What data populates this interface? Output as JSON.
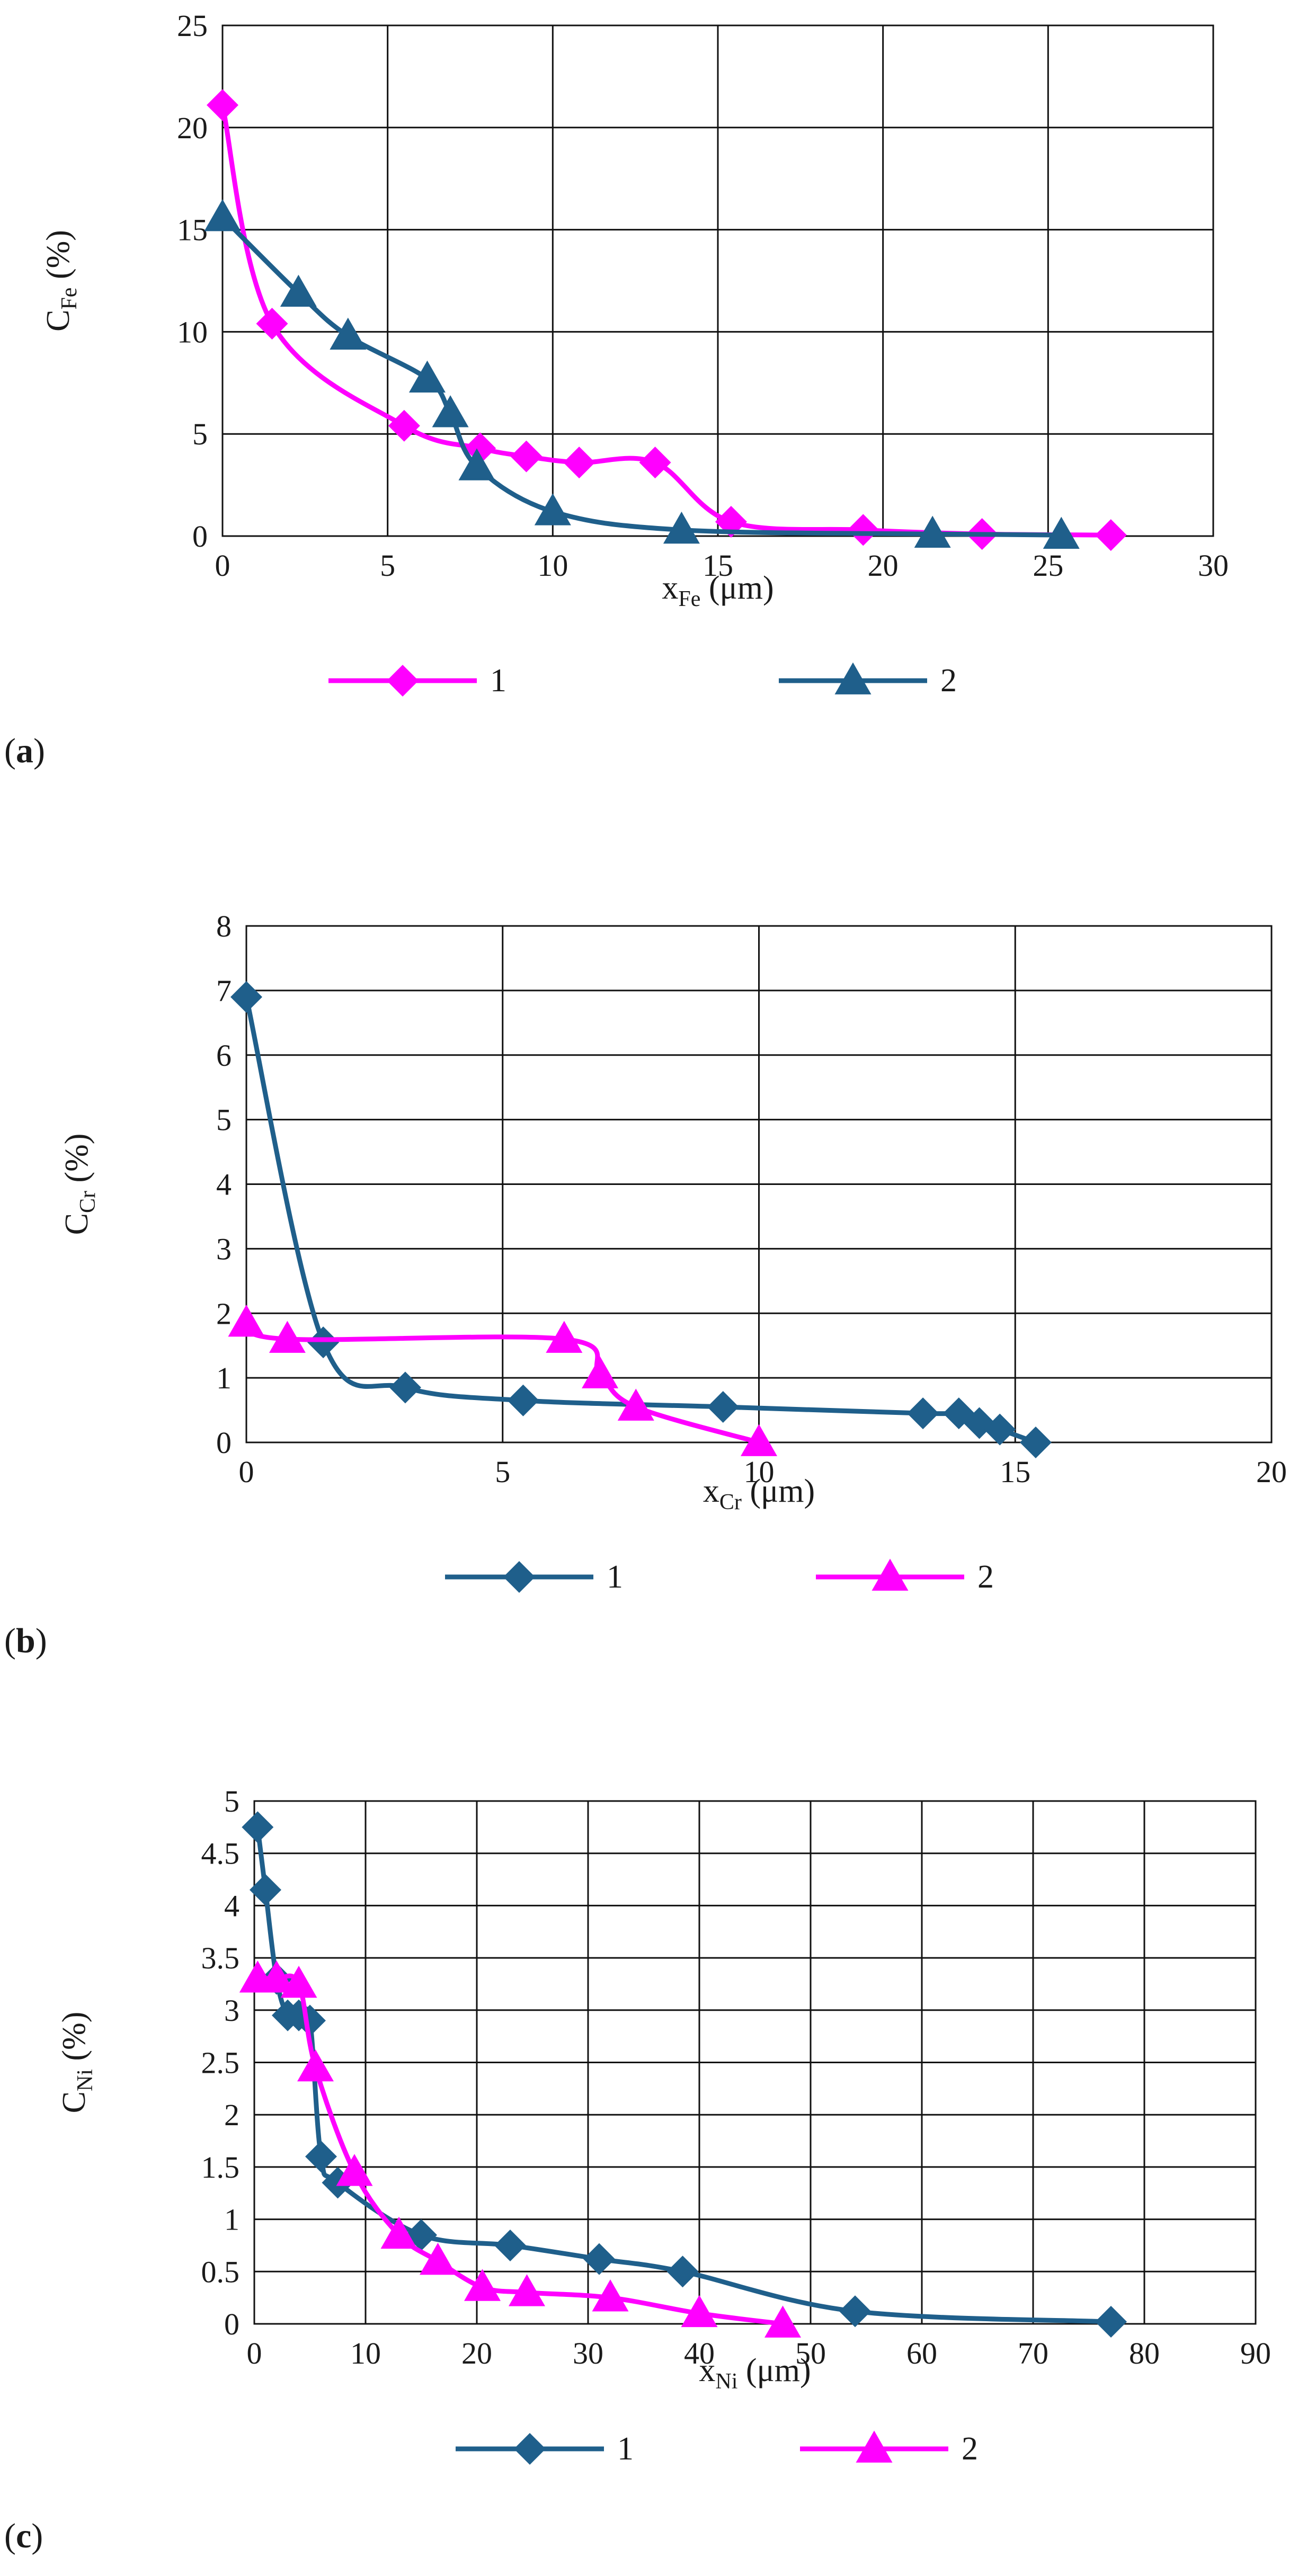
{
  "chart_data": [
    {
      "id": "a",
      "type": "line",
      "panel_label": "a",
      "xlabel_main": "x",
      "xlabel_sub": "Fe",
      "xlabel_unit": " (μm)",
      "ylabel_main": "C",
      "ylabel_sub": "Fe",
      "ylabel_unit": " (%)",
      "xlim": [
        0,
        30
      ],
      "ylim": [
        0,
        25
      ],
      "xticks": [
        0,
        5,
        10,
        15,
        20,
        25,
        30
      ],
      "yticks": [
        0,
        5,
        10,
        15,
        20,
        25
      ],
      "ytick_labels": [
        "0",
        "5",
        "10",
        "15",
        "20",
        "25"
      ],
      "xtick_labels": [
        "0",
        "5",
        "10",
        "15",
        "20",
        "25",
        "30"
      ],
      "grid": true,
      "legend_position": "bottom",
      "series": [
        {
          "name": "1",
          "color": "#ff00ff",
          "marker": "diamond",
          "x": [
            0,
            1.5,
            5.5,
            7.8,
            9.2,
            10.8,
            13.1,
            15.4,
            19.4,
            23.0,
            26.9
          ],
          "y": [
            21.1,
            10.4,
            5.4,
            4.3,
            3.9,
            3.6,
            3.6,
            0.7,
            0.3,
            0.1,
            0.05
          ]
        },
        {
          "name": "2",
          "color": "#1f5f8b",
          "marker": "triangle",
          "x": [
            0,
            2.3,
            3.8,
            6.2,
            6.9,
            7.7,
            10.0,
            13.9,
            21.5,
            25.4
          ],
          "y": [
            15.6,
            11.9,
            9.8,
            7.7,
            6.0,
            3.4,
            1.2,
            0.3,
            0.1,
            0.05
          ]
        }
      ]
    },
    {
      "id": "b",
      "type": "line",
      "panel_label": "b",
      "xlabel_main": "x",
      "xlabel_sub": "Cr",
      "xlabel_unit": " (μm)",
      "ylabel_main": "C",
      "ylabel_sub": "Cr",
      "ylabel_unit": "  (%)",
      "xlim": [
        0,
        20
      ],
      "ylim": [
        0,
        8
      ],
      "xticks": [
        0,
        5,
        10,
        15,
        20
      ],
      "yticks": [
        0,
        1,
        2,
        3,
        4,
        5,
        6,
        7,
        8
      ],
      "ytick_labels": [
        "0",
        "1",
        "2",
        "3",
        "4",
        "5",
        "6",
        "7",
        "8"
      ],
      "xtick_labels": [
        "0",
        "5",
        "10",
        "15",
        "20"
      ],
      "grid": true,
      "legend_position": "bottom",
      "series": [
        {
          "name": "1",
          "color": "#1f5f8b",
          "marker": "diamond",
          "x": [
            0,
            1.5,
            3.1,
            5.4,
            9.3,
            13.2,
            13.9,
            14.3,
            14.7,
            15.4
          ],
          "y": [
            6.9,
            1.55,
            0.85,
            0.65,
            0.55,
            0.45,
            0.45,
            0.3,
            0.2,
            0.0
          ]
        },
        {
          "name": "2",
          "color": "#ff00ff",
          "marker": "triangle",
          "x": [
            0,
            0.8,
            6.2,
            6.9,
            7.6,
            10.0
          ],
          "y": [
            1.85,
            1.6,
            1.6,
            1.05,
            0.55,
            0.0
          ]
        }
      ]
    },
    {
      "id": "c",
      "type": "line",
      "panel_label": "c",
      "xlabel_main": "x",
      "xlabel_sub": "Ni",
      "xlabel_unit": " (μm)",
      "ylabel_main": "C",
      "ylabel_sub": "Ni",
      "ylabel_unit": "  (%)",
      "xlim": [
        0,
        90
      ],
      "ylim": [
        0,
        5
      ],
      "xticks": [
        0,
        10,
        20,
        30,
        40,
        50,
        60,
        70,
        80,
        90
      ],
      "yticks": [
        0,
        0.5,
        1,
        1.5,
        2,
        2.5,
        3,
        3.5,
        4,
        4.5,
        5
      ],
      "ytick_labels": [
        "0",
        "0.5",
        "1",
        "1.5",
        "2",
        "2.5",
        "3",
        "3.5",
        "4",
        "4.5",
        "5"
      ],
      "xtick_labels": [
        "0",
        "10",
        "20",
        "30",
        "40",
        "50",
        "60",
        "70",
        "80",
        "90"
      ],
      "grid": true,
      "legend_position": "bottom",
      "series": [
        {
          "name": "1",
          "color": "#1f5f8b",
          "marker": "diamond",
          "x": [
            0.3,
            1.0,
            2.0,
            3.0,
            4.0,
            5.0,
            6.0,
            7.5,
            15.0,
            23.0,
            31.0,
            38.5,
            54.0,
            77.0
          ],
          "y": [
            4.75,
            4.15,
            3.3,
            2.95,
            2.95,
            2.9,
            1.6,
            1.35,
            0.85,
            0.75,
            0.62,
            0.5,
            0.12,
            0.02
          ]
        },
        {
          "name": "2",
          "color": "#ff00ff",
          "marker": "triangle",
          "x": [
            0.3,
            2.0,
            4.0,
            5.5,
            9.0,
            13.0,
            16.5,
            20.5,
            24.5,
            32.0,
            40.0,
            47.5
          ],
          "y": [
            3.3,
            3.3,
            3.25,
            2.45,
            1.45,
            0.85,
            0.6,
            0.35,
            0.3,
            0.25,
            0.1,
            0.0
          ]
        }
      ]
    }
  ]
}
